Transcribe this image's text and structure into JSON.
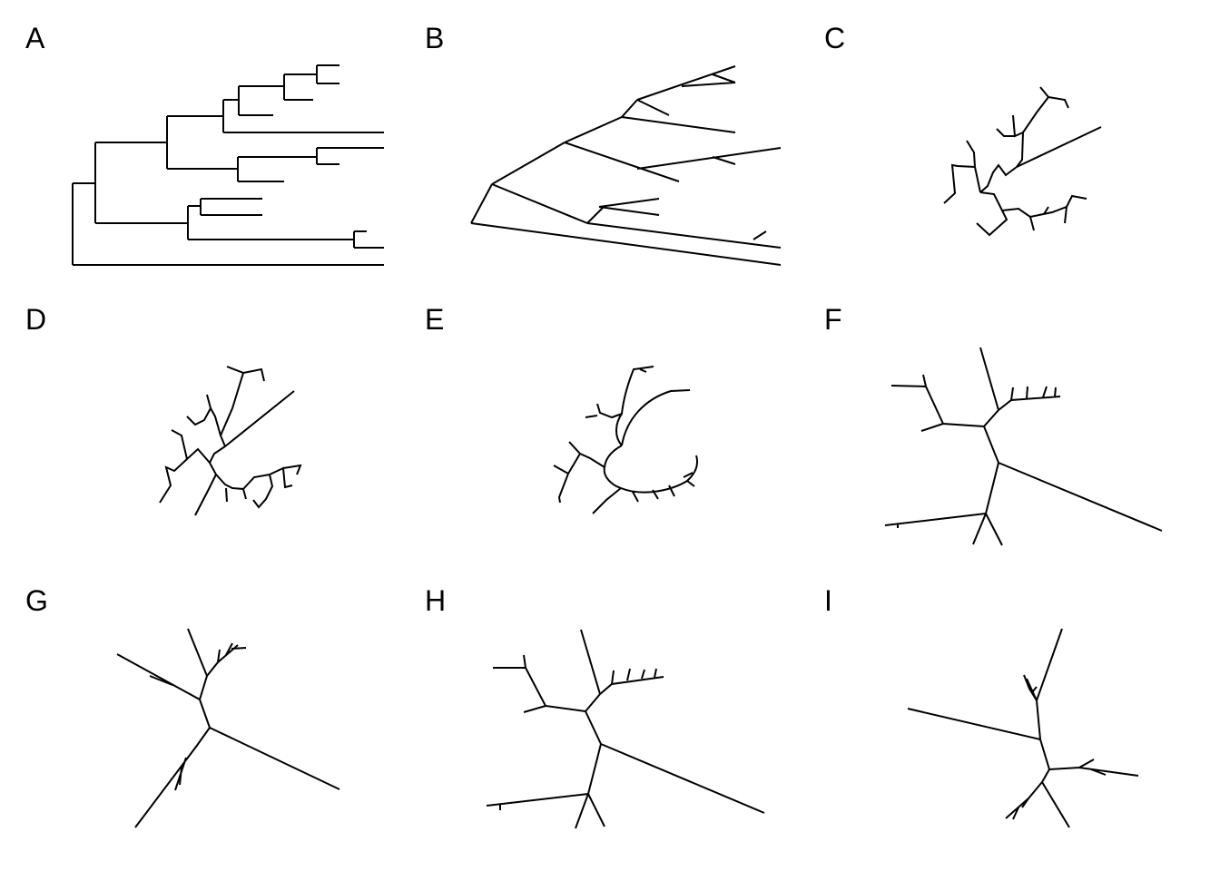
{
  "panels": [
    {
      "label": "A",
      "style": "rectangular-phylogram"
    },
    {
      "label": "B",
      "style": "slanted-phylogram"
    },
    {
      "label": "C",
      "style": "radial-phylogram"
    },
    {
      "label": "D",
      "style": "radial-phylogram"
    },
    {
      "label": "E",
      "style": "radial-arc-phylogram"
    },
    {
      "label": "F",
      "style": "unrooted-equal-angle"
    },
    {
      "label": "G",
      "style": "unrooted-equal-angle"
    },
    {
      "label": "H",
      "style": "unrooted-equal-angle"
    },
    {
      "label": "I",
      "style": "unrooted-equal-angle"
    }
  ],
  "colors": {
    "background": "#ffffff",
    "line": "#000000"
  }
}
